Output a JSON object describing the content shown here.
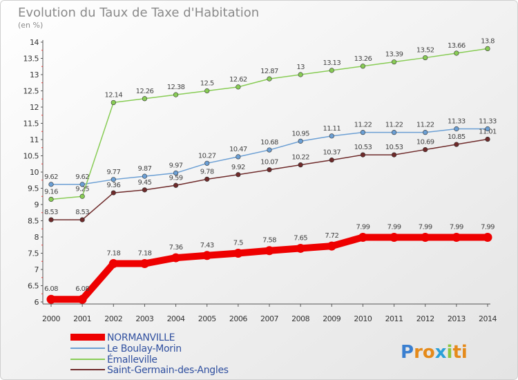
{
  "chart_data": {
    "type": "line",
    "title": "Evolution du Taux de Taxe d'Habitation",
    "subtitle": "(en %)",
    "xlabel": "",
    "ylabel": "",
    "x": [
      "2000",
      "2001",
      "2002",
      "2003",
      "2004",
      "2005",
      "2006",
      "2007",
      "2008",
      "2009",
      "2010",
      "2011",
      "2012",
      "2013",
      "2014"
    ],
    "ylim": [
      6,
      14
    ],
    "yticks": [
      "6",
      "6.5",
      "7",
      "7.5",
      "8",
      "8.5",
      "9",
      "9.5",
      "10",
      "10.5",
      "11",
      "11.5",
      "12",
      "12.5",
      "13",
      "13.5",
      "14"
    ],
    "grid": false,
    "legend_position": "bottom-left",
    "series": [
      {
        "name": "NORMANVILLE",
        "color": "#ee0000",
        "values": [
          6.08,
          6.08,
          7.18,
          7.18,
          7.36,
          7.43,
          7.5,
          7.58,
          7.65,
          7.72,
          7.99,
          7.99,
          7.99,
          7.99,
          7.99
        ],
        "labels": [
          "6.08",
          "6.08",
          "7.18",
          "7.18",
          "7.36",
          "7.43",
          "7.5",
          "7.58",
          "7.65",
          "7.72",
          "7.99",
          "7.99",
          "7.99",
          "7.99",
          "7.99"
        ]
      },
      {
        "name": "Le Boulay-Morin",
        "color": "#6b9fd4",
        "values": [
          9.62,
          9.62,
          9.77,
          9.87,
          9.97,
          10.27,
          10.47,
          10.68,
          10.95,
          11.11,
          11.22,
          11.22,
          11.22,
          11.33,
          11.33
        ],
        "labels": [
          "9.62",
          "9.62",
          "9.77",
          "9.87",
          "9.97",
          "10.27",
          "10.47",
          "10.68",
          "10.95",
          "11.11",
          "11.22",
          "11.22",
          "11.22",
          "11.33",
          "11.33"
        ]
      },
      {
        "name": "Émalleville",
        "color": "#88cc55",
        "values": [
          9.16,
          9.25,
          12.14,
          12.26,
          12.38,
          12.5,
          12.62,
          12.87,
          13.0,
          13.13,
          13.26,
          13.39,
          13.52,
          13.66,
          13.8
        ],
        "labels": [
          "9.16",
          "9.25",
          "12.14",
          "12.26",
          "12.38",
          "12.5",
          "12.62",
          "12.87",
          "13",
          "13.13",
          "13.26",
          "13.39",
          "13.52",
          "13.66",
          "13.8"
        ]
      },
      {
        "name": "Saint-Germain-des-Angles",
        "color": "#6e2a2a",
        "values": [
          8.53,
          8.53,
          9.36,
          9.45,
          9.59,
          9.78,
          9.92,
          10.07,
          10.22,
          10.37,
          10.53,
          10.53,
          10.69,
          10.85,
          11.01
        ],
        "labels": [
          "8.53",
          "8.53",
          "9.36",
          "9.45",
          "9.59",
          "9.78",
          "9.92",
          "10.07",
          "10.22",
          "10.37",
          "10.53",
          "10.53",
          "10.69",
          "10.85",
          "11.01"
        ]
      }
    ]
  },
  "logo": {
    "text": "Proxiti",
    "letters": [
      "P",
      "r",
      "o",
      "x",
      "i",
      "t",
      "i"
    ],
    "colors": [
      "#3a7fd0",
      "#e58a1a",
      "#e58a1a",
      "#2aa0d8",
      "#8cc63f",
      "#e58a1a",
      "#e58a1a"
    ]
  }
}
